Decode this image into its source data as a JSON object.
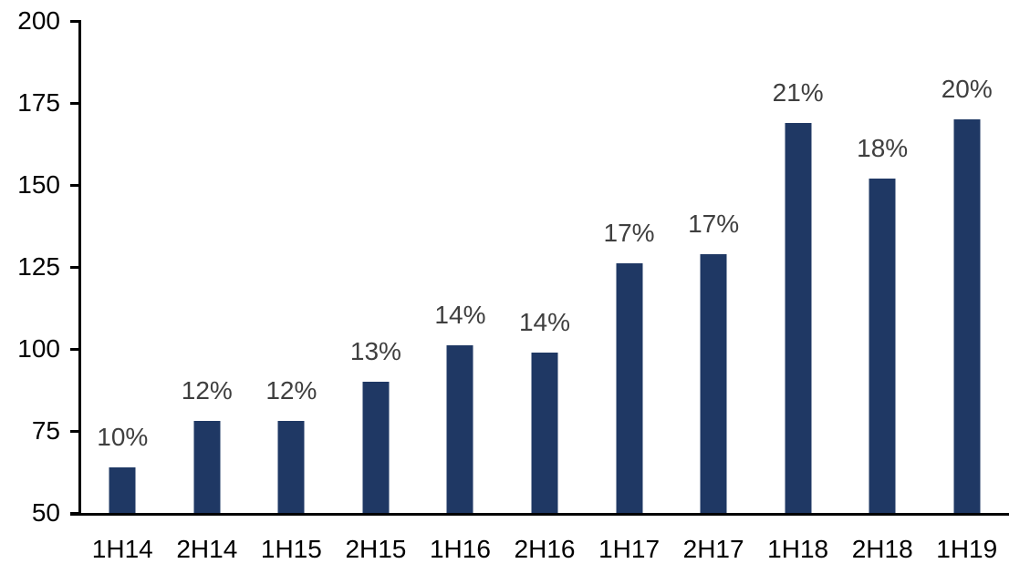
{
  "chart_data": {
    "type": "bar",
    "title": "",
    "xlabel": "",
    "ylabel": "",
    "categories": [
      "1H14",
      "2H14",
      "1H15",
      "2H15",
      "1H16",
      "2H16",
      "1H17",
      "2H17",
      "1H18",
      "2H18",
      "1H19"
    ],
    "values": [
      64,
      78,
      78,
      90,
      101,
      99,
      126,
      129,
      169,
      152,
      170
    ],
    "data_labels": [
      "10%",
      "12%",
      "12%",
      "13%",
      "14%",
      "14%",
      "17%",
      "17%",
      "21%",
      "18%",
      "20%"
    ],
    "ylim": [
      50,
      200
    ],
    "yticks": [
      50,
      75,
      100,
      125,
      150,
      175,
      200
    ],
    "grid": false,
    "legend": "none",
    "bar_color": "#1F3864",
    "data_label_color": "#3F3F3F",
    "axis_color": "#000000",
    "background_color": "#FFFFFF"
  }
}
